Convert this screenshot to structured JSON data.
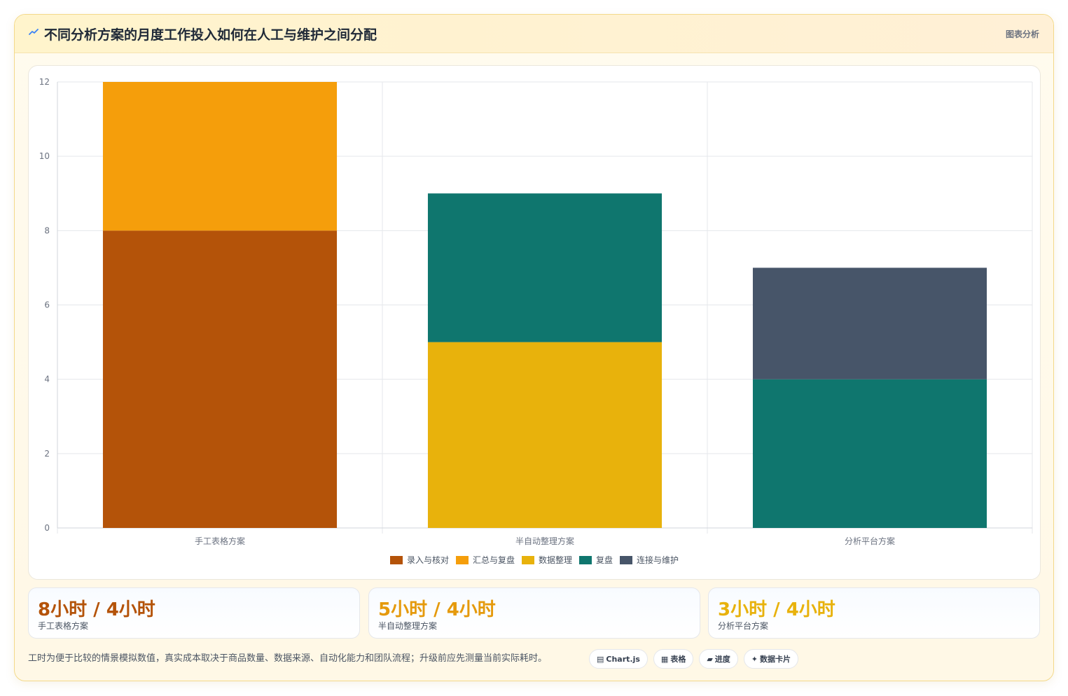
{
  "header": {
    "title": "不同分析方案的月度工作投入如何在人工与维护之间分配",
    "tag": "图表分析"
  },
  "chart_data": {
    "type": "bar",
    "stacked": true,
    "categories": [
      "手工表格方案",
      "半自动整理方案",
      "分析平台方案"
    ],
    "series": [
      {
        "name": "录入与核对",
        "color": "#b45309",
        "values": [
          8,
          0,
          0
        ]
      },
      {
        "name": "汇总与复盘",
        "color": "#f59e0b",
        "values": [
          4,
          0,
          0
        ]
      },
      {
        "name": "数据整理",
        "color": "#e8b20c",
        "values": [
          0,
          5,
          0
        ]
      },
      {
        "name": "复盘",
        "color": "#0f766e",
        "values": [
          0,
          4,
          4
        ]
      },
      {
        "name": "连接与维护",
        "color": "#475569",
        "values": [
          0,
          0,
          3
        ]
      }
    ],
    "ylim": [
      0,
      12
    ],
    "yticks": [
      0,
      2,
      4,
      6,
      8,
      10,
      12
    ],
    "grid": true,
    "legend_position": "bottom"
  },
  "stats": [
    {
      "value": "8小时 / 4小时",
      "label": "手工表格方案",
      "color": "#b45309"
    },
    {
      "value": "5小时 / 4小时",
      "label": "半自动整理方案",
      "color": "#e59a0c"
    },
    {
      "value": "3小时 / 4小时",
      "label": "分析平台方案",
      "color": "#e8b20c"
    }
  ],
  "footnote": "工时为便于比较的情景模拟数值，真实成本取决于商品数量、数据来源、自动化能力和团队流程；升级前应先测量当前实际耗时。",
  "chips": [
    {
      "icon": "▤",
      "label": "Chart.js",
      "icon_name": "chart-icon"
    },
    {
      "icon": "▦",
      "label": "表格",
      "icon_name": "table-icon"
    },
    {
      "icon": "▰",
      "label": "进度",
      "icon_name": "progress-icon"
    },
    {
      "icon": "✦",
      "label": "数据卡片",
      "icon_name": "sparkle-icon"
    }
  ]
}
